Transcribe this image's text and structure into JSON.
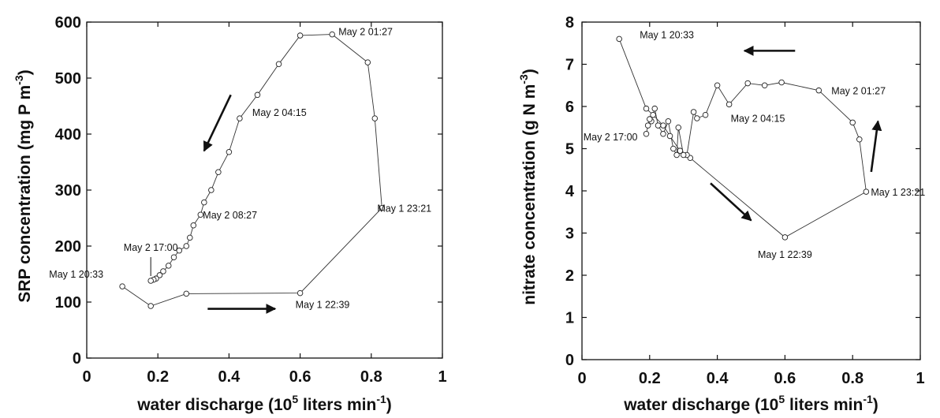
{
  "chart_data": [
    {
      "type": "line",
      "xlabel": "water discharge (10^5 liters min^-1)",
      "xlabel_parts": {
        "pre": "water discharge (10",
        "sup": "5",
        "post": " liters min",
        "sup2": "-1",
        "end": ")"
      },
      "ylabel": "SRP concentration (mg P m^-3)",
      "ylabel_parts": {
        "pre": "SRP concentration (mg P m",
        "sup": "-3",
        "end": ")"
      },
      "xlim": [
        0,
        1
      ],
      "ylim": [
        0,
        600
      ],
      "xticks": [
        "0",
        "0.2",
        "0.4",
        "0.6",
        "0.8",
        "1"
      ],
      "yticks": [
        "0",
        "100",
        "200",
        "300",
        "400",
        "500",
        "600"
      ],
      "grid": false,
      "series": [
        {
          "x": [
            0.1,
            0.18,
            0.28,
            0.6,
            0.83,
            0.81,
            0.79,
            0.69,
            0.6,
            0.54,
            0.48,
            0.43,
            0.4,
            0.37,
            0.35,
            0.33,
            0.32,
            0.3,
            0.29,
            0.28,
            0.26,
            0.245,
            0.23,
            0.215,
            0.205,
            0.195,
            0.188,
            0.18
          ],
          "y": [
            128,
            93,
            115,
            116,
            268,
            428,
            528,
            578,
            576,
            525,
            470,
            428,
            368,
            332,
            300,
            278,
            256,
            237,
            215,
            200,
            192,
            180,
            165,
            155,
            148,
            142,
            140,
            138
          ]
        }
      ],
      "annotations": [
        {
          "text": "May 1 20:33",
          "x": 0.1,
          "y": 128
        },
        {
          "text": "May 1 22:39",
          "x": 0.6,
          "y": 116
        },
        {
          "text": "May 1 23:21",
          "x": 0.83,
          "y": 268
        },
        {
          "text": "May 2 01:27",
          "x": 0.69,
          "y": 578
        },
        {
          "text": "May 2 04:15",
          "x": 0.43,
          "y": 428
        },
        {
          "text": "May 2 08:27",
          "x": 0.3,
          "y": 256
        },
        {
          "text": "May 2 17:00",
          "x": 0.18,
          "y": 138
        }
      ],
      "arrows": [
        {
          "from": [
            0.405,
            470
          ],
          "to": [
            0.33,
            370
          ]
        },
        {
          "from": [
            0.34,
            88
          ],
          "to": [
            0.53,
            88
          ]
        }
      ]
    },
    {
      "type": "line",
      "xlabel": "water discharge (10^5 liters min^-1)",
      "xlabel_parts": {
        "pre": "water discharge (10",
        "sup": "5",
        "post": " liters min",
        "sup2": "-1",
        "end": ")"
      },
      "ylabel": "nitrate concentration (g N m^-3)",
      "ylabel_parts": {
        "pre": "nitrate concentration (g N m",
        "sup": "-3",
        "end": ")"
      },
      "xlim": [
        0,
        1
      ],
      "ylim": [
        0,
        8
      ],
      "xticks": [
        "0",
        "0.2",
        "0.4",
        "0.6",
        "0.8",
        "1"
      ],
      "yticks": [
        "0",
        "1",
        "2",
        "3",
        "4",
        "5",
        "6",
        "7",
        "8"
      ],
      "grid": false,
      "series": [
        {
          "x": [
            0.11,
            0.19,
            0.21,
            0.24,
            0.26,
            0.29,
            0.32,
            0.6,
            0.84,
            0.82,
            0.8,
            0.7,
            0.59,
            0.54,
            0.49,
            0.435,
            0.4,
            0.365,
            0.34,
            0.33,
            0.31,
            0.3,
            0.285,
            0.28,
            0.27,
            0.255,
            0.24,
            0.225,
            0.215,
            0.205,
            0.2,
            0.195,
            0.19
          ],
          "y": [
            7.6,
            5.95,
            5.8,
            5.55,
            5.3,
            4.95,
            4.78,
            2.9,
            3.98,
            5.22,
            5.62,
            6.38,
            6.57,
            6.5,
            6.55,
            6.05,
            6.5,
            5.8,
            5.72,
            5.87,
            4.85,
            4.85,
            5.5,
            4.85,
            5.0,
            5.65,
            5.35,
            5.55,
            5.95,
            5.65,
            5.7,
            5.55,
            5.35
          ]
        }
      ],
      "annotations": [
        {
          "text": "May 1 20:33",
          "x": 0.11,
          "y": 7.6
        },
        {
          "text": "May 2 01:27",
          "x": 0.7,
          "y": 6.38
        },
        {
          "text": "May 2 04:15",
          "x": 0.435,
          "y": 6.05
        },
        {
          "text": "May 2 17:00",
          "x": 0.19,
          "y": 5.35
        },
        {
          "text": "May 1 23:21",
          "x": 0.84,
          "y": 3.98
        },
        {
          "text": "May 1 22:39",
          "x": 0.6,
          "y": 2.9
        }
      ],
      "arrows": [
        {
          "from": [
            0.63,
            7.32
          ],
          "to": [
            0.48,
            7.32
          ]
        },
        {
          "from": [
            0.855,
            4.45
          ],
          "to": [
            0.875,
            5.65
          ]
        },
        {
          "from": [
            0.38,
            4.18
          ],
          "to": [
            0.5,
            3.3
          ]
        }
      ]
    }
  ]
}
